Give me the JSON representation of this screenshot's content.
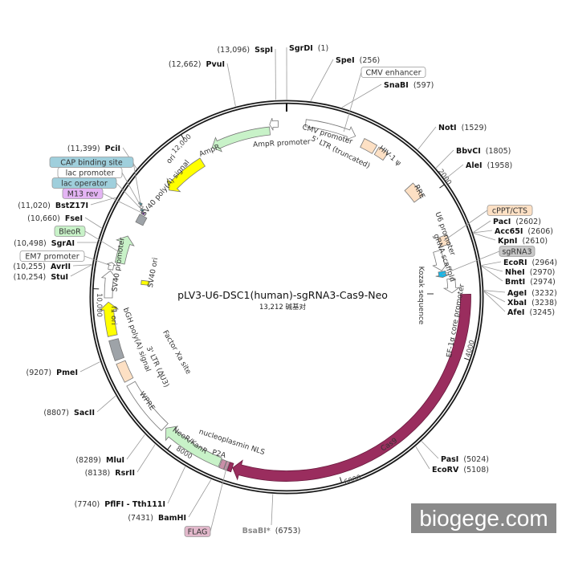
{
  "title": "pLV3-U6-DSC1(human)-sgRNA3-Cas9-Neo",
  "length_label": "13,212 碱基对",
  "total_bp": 13212,
  "watermark": "biogege.com",
  "ticks": [
    {
      "bp": 2000,
      "label": "2000"
    },
    {
      "bp": 4000,
      "label": "4000"
    },
    {
      "bp": 6000,
      "label": "6000"
    },
    {
      "bp": 8000,
      "label": "8000"
    },
    {
      "bp": 10000,
      "label": "10,000"
    },
    {
      "bp": 12000,
      "label": "12,000"
    }
  ],
  "enzymes": [
    {
      "name": "SgrDI",
      "pos": 1,
      "pos_label": "(1)"
    },
    {
      "name": "SpeI",
      "pos": 256,
      "pos_label": "(256)"
    },
    {
      "name": "SnaBI",
      "pos": 597,
      "pos_label": "(597)"
    },
    {
      "name": "NotI",
      "pos": 1529,
      "pos_label": "(1529)"
    },
    {
      "name": "BbvCI",
      "pos": 1805,
      "pos_label": "(1805)"
    },
    {
      "name": "AleI",
      "pos": 1958,
      "pos_label": "(1958)"
    },
    {
      "name": "PacI",
      "pos": 2602,
      "pos_label": "(2602)"
    },
    {
      "name": "Acc65I",
      "pos": 2606,
      "pos_label": "(2606)"
    },
    {
      "name": "KpnI",
      "pos": 2610,
      "pos_label": "(2610)"
    },
    {
      "name": "EcoRI",
      "pos": 2964,
      "pos_label": "(2964)"
    },
    {
      "name": "NheI",
      "pos": 2970,
      "pos_label": "(2970)"
    },
    {
      "name": "BmtI",
      "pos": 2974,
      "pos_label": "(2974)"
    },
    {
      "name": "AgeI",
      "pos": 3232,
      "pos_label": "(3232)"
    },
    {
      "name": "XbaI",
      "pos": 3238,
      "pos_label": "(3238)"
    },
    {
      "name": "AfeI",
      "pos": 3245,
      "pos_label": "(3245)"
    },
    {
      "name": "PasI",
      "pos": 5024,
      "pos_label": "(5024)"
    },
    {
      "name": "EcoRV",
      "pos": 5108,
      "pos_label": "(5108)"
    },
    {
      "name": "BsaBI*",
      "pos": 6753,
      "pos_label": "(6753)"
    },
    {
      "name": "BamHI",
      "pos": 7431,
      "pos_label": "(7431)"
    },
    {
      "name": "PflFI - Tth111I",
      "pos": 7740,
      "pos_label": "(7740)"
    },
    {
      "name": "RsrII",
      "pos": 8138,
      "pos_label": "(8138)"
    },
    {
      "name": "MluI",
      "pos": 8289,
      "pos_label": "(8289)"
    },
    {
      "name": "SacII",
      "pos": 8807,
      "pos_label": "(8807)"
    },
    {
      "name": "PmeI",
      "pos": 9207,
      "pos_label": "(9207)"
    },
    {
      "name": "StuI",
      "pos": 10254,
      "pos_label": "(10,254)"
    },
    {
      "name": "AvrII",
      "pos": 10255,
      "pos_label": "(10,255)"
    },
    {
      "name": "SgrAI",
      "pos": 10498,
      "pos_label": "(10,498)"
    },
    {
      "name": "FseI",
      "pos": 10660,
      "pos_label": "(10,660)"
    },
    {
      "name": "BstZ17I",
      "pos": 11020,
      "pos_label": "(11,020)"
    },
    {
      "name": "PciI",
      "pos": 11399,
      "pos_label": "(11,399)"
    },
    {
      "name": "PvuI",
      "pos": 12662,
      "pos_label": "(12,662)"
    },
    {
      "name": "SspI",
      "pos": 13096,
      "pos_label": "(13,096)"
    }
  ],
  "features": [
    {
      "name": "CMV promoter",
      "start": 230,
      "end": 850,
      "color": "#ffffff",
      "dir": 1
    },
    {
      "name": "5' LTR (truncated)",
      "start": 960,
      "end": 1130,
      "color": "#fde0c4",
      "dir": 0
    },
    {
      "name": "HIV-1 ψ",
      "start": 1160,
      "end": 1290,
      "color": "#fde0c4",
      "dir": 0
    },
    {
      "name": "RRE",
      "start": 1760,
      "end": 1960,
      "color": "#fde0c4",
      "dir": 0
    },
    {
      "name": "cPPT/CTS",
      "start": 2520,
      "end": 2640,
      "color": "#fde0c4",
      "dir": 0
    },
    {
      "name": "U6 promoter",
      "start": 2680,
      "end": 2950,
      "color": "#ffffff",
      "dir": 1
    },
    {
      "name": "gRNA scaffold",
      "start": 2960,
      "end": 3040,
      "color": "#1ab6e6",
      "dir": 1
    },
    {
      "name": "EF-1α core promoter",
      "start": 3070,
      "end": 3250,
      "color": "#ffffff",
      "dir": 1
    },
    {
      "name": "Cas9",
      "start": 3270,
      "end": 7250,
      "color": "#9a2d5e",
      "dir": 1
    },
    {
      "name": "nucleoplasmin NLS",
      "start": 7255,
      "end": 7300,
      "color": "#9a2d5e",
      "dir": 0
    },
    {
      "name": "FLAG",
      "start": 7305,
      "end": 7340,
      "color": "#c98fa8",
      "dir": 0
    },
    {
      "name": "P2A",
      "start": 7345,
      "end": 7400,
      "color": "#c98fa8",
      "dir": 0
    },
    {
      "name": "NeoR/KanR",
      "start": 7410,
      "end": 8170,
      "color": "#c8f2c8",
      "dir": 1
    },
    {
      "name": "WPRE",
      "start": 8190,
      "end": 8840,
      "color": "#ffffff",
      "dir": 0
    },
    {
      "name": "3' LTR (ΔU3)",
      "start": 8890,
      "end": 9120,
      "color": "#fde0c4",
      "dir": 0
    },
    {
      "name": "bGH poly(A) signal",
      "start": 9160,
      "end": 9400,
      "color": "#9ea3a8",
      "dir": 0
    },
    {
      "name": "f1 ori",
      "start": 9450,
      "end": 9850,
      "color": "#ffff00",
      "dir": 1
    },
    {
      "name": "SV40 promoter",
      "start": 9900,
      "end": 10220,
      "color": "#ffffff",
      "dir": 1
    },
    {
      "name": "EM7 promoter",
      "start": 10235,
      "end": 10320,
      "color": "#ffffff",
      "dir": 1
    },
    {
      "name": "BleoR",
      "start": 10330,
      "end": 10680,
      "color": "#c8f2c8",
      "dir": 1
    },
    {
      "name": "SV40 ori",
      "start": 10090,
      "end": 10150,
      "color": "#ffff00",
      "dir": 0
    },
    {
      "name": "SV40 poly(A) signal",
      "start": 10880,
      "end": 10990,
      "color": "#9ea3a8",
      "dir": 0
    },
    {
      "name": "M13 rev",
      "start": 11005,
      "end": 11030,
      "color": "#8a2bc8",
      "dir": 0
    },
    {
      "name": "lac operator",
      "start": 11035,
      "end": 11060,
      "color": "#2e7f90",
      "dir": 0
    },
    {
      "name": "lac promoter",
      "start": 11062,
      "end": 11090,
      "color": "#ffffff",
      "dir": 0
    },
    {
      "name": "CAP binding site",
      "start": 11092,
      "end": 11115,
      "color": "#2e7f90",
      "dir": 0
    },
    {
      "name": "ori",
      "start": 11460,
      "end": 12040,
      "color": "#ffff00",
      "dir": -1
    },
    {
      "name": "AmpR",
      "start": 12240,
      "end": 13000,
      "color": "#c8f2c8",
      "dir": -1
    },
    {
      "name": "AmpR promoter",
      "start": 13005,
      "end": 13110,
      "color": "#ffffff",
      "dir": -1
    }
  ],
  "feature_labels": [
    "AmpR",
    "AmpR promoter",
    "CMV promoter",
    "5' LTR (truncated)",
    "HIV-1 ψ",
    "RRE",
    "U6 promoter",
    "gRNA scaffold",
    "Kozak sequence",
    "EF-1α core promoter",
    "Cas9",
    "nucleoplasmin NLS",
    "P2A",
    "NeoR/KanR",
    "WPRE",
    "3' LTR (ΔU3)",
    "bGH poly(A) signal",
    "Factor Xa site",
    "f1 ori",
    "SV40 promoter",
    "SV40 ori",
    "SV40 poly(A) signal",
    "ori"
  ],
  "boxed_labels": [
    {
      "text": "CMV enhancer",
      "color": "#ffffff"
    },
    {
      "text": "cPPT/CTS",
      "color": "#fde0c4"
    },
    {
      "text": "sgRNA3",
      "color": "#c8c8c8"
    },
    {
      "text": "CAP binding site",
      "color": "#9fcfdc"
    },
    {
      "text": "lac promoter",
      "color": "#ffffff"
    },
    {
      "text": "lac operator",
      "color": "#9fcfdc"
    },
    {
      "text": "M13 rev",
      "color": "#e4b4f4"
    },
    {
      "text": "BleoR",
      "color": "#c8f2c8"
    },
    {
      "text": "EM7 promoter",
      "color": "#ffffff"
    },
    {
      "text": "FLAG",
      "color": "#e2b8cb"
    }
  ]
}
